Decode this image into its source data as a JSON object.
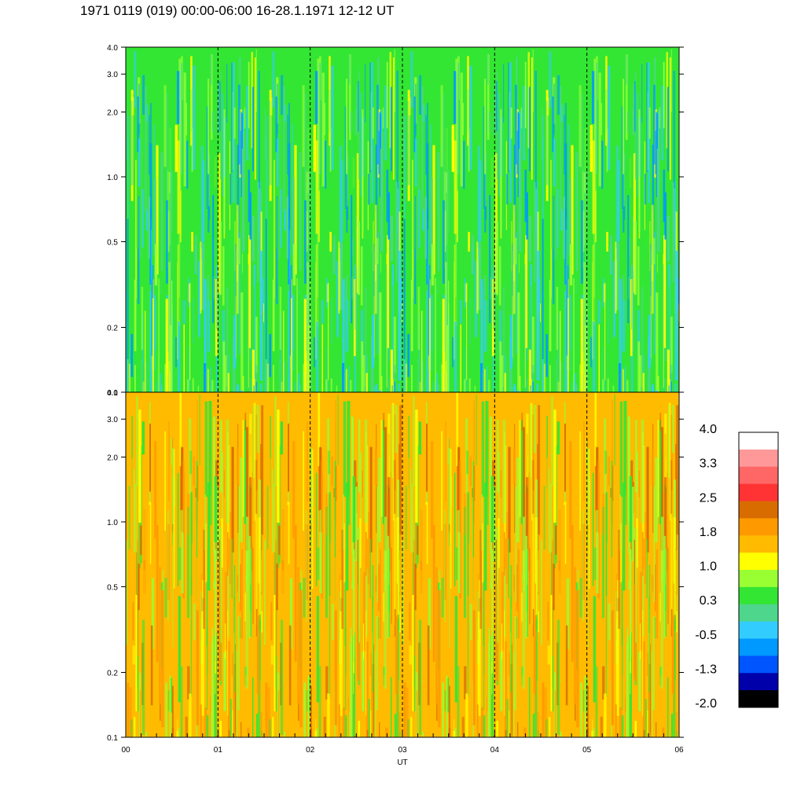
{
  "title": "1971 0119 (019) 00:00-06:00 16-28.1.1971  12-12 UT",
  "chart_data": {
    "type": "heatmap",
    "title": "1971 0119 (019) 00:00-06:00 16-28.1.1971  12-12 UT",
    "xlabel": "UT",
    "x_tick_labels": [
      "00",
      "01",
      "02",
      "03",
      "04",
      "05",
      "06"
    ],
    "x_range": [
      0,
      6
    ],
    "y_scale": "log",
    "y_range": [
      0.1,
      4.0
    ],
    "y_ticks": [
      {
        "value": 0.1,
        "label": "0.1"
      },
      {
        "value": 0.2,
        "label": "0.2"
      },
      {
        "value": 0.5,
        "label": "0.5"
      },
      {
        "value": 1.0,
        "label": "1.0"
      },
      {
        "value": 2.0,
        "label": "2.0"
      },
      {
        "value": 3.0,
        "label": "3.0"
      },
      {
        "value": 4.0,
        "label": "4.0"
      }
    ],
    "dashed_vertical_lines_at": [
      1,
      2,
      3,
      4,
      5
    ],
    "panels": [
      {
        "position": "top",
        "dominant_colors": [
          "#33e633",
          "#4dd68c",
          "#99ff33",
          "#ffff00",
          "#33ccff",
          "#0099ff"
        ]
      },
      {
        "position": "bottom",
        "dominant_colors": [
          "#ffbb00",
          "#ff9900",
          "#ffff00",
          "#99ff33",
          "#d96c00",
          "#33e633"
        ]
      }
    ],
    "colorbar": {
      "labels": [
        "4.0",
        "3.3",
        "2.5",
        "1.8",
        "1.0",
        "0.3",
        "-0.5",
        "-1.3",
        "-2.0"
      ],
      "colors_top_to_bottom": [
        "#ffffff",
        "#ff9999",
        "#ff6666",
        "#ff3333",
        "#d96c00",
        "#ff9900",
        "#ffbb00",
        "#ffff00",
        "#99ff33",
        "#33e633",
        "#4dd68c",
        "#33ccff",
        "#0099ff",
        "#0055ff",
        "#0000aa",
        "#000000"
      ]
    }
  }
}
